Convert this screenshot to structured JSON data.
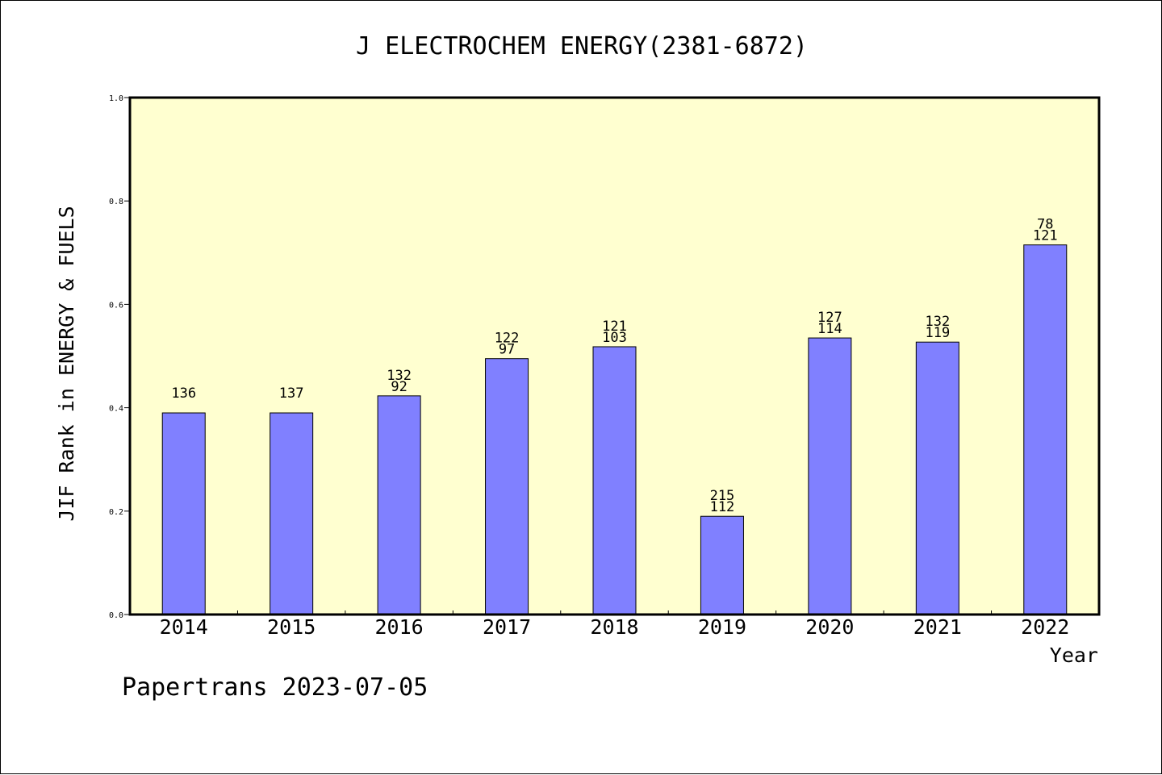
{
  "footer": "Papertrans 2023-07-05",
  "chart_data": {
    "type": "bar",
    "title": "J ELECTROCHEM ENERGY(2381-6872)",
    "xlabel": "Year",
    "ylabel": "JIF Rank in ENERGY & FUELS",
    "ylim": [
      0,
      1.0
    ],
    "yticks": [
      "0.0",
      "0.2",
      "0.4",
      "0.6",
      "0.8",
      "1.0"
    ],
    "categories": [
      "2014",
      "2015",
      "2016",
      "2017",
      "2018",
      "2019",
      "2020",
      "2021",
      "2022"
    ],
    "series": [
      {
        "values": [
          0.39,
          0.39,
          0.423,
          0.495,
          0.518,
          0.19,
          0.535,
          0.527,
          0.715
        ]
      }
    ],
    "bar_labels": [
      [
        "136"
      ],
      [
        "137"
      ],
      [
        "132",
        "92"
      ],
      [
        "122",
        "97"
      ],
      [
        "121",
        "103"
      ],
      [
        "215",
        "112"
      ],
      [
        "127",
        "114"
      ],
      [
        "132",
        "119"
      ],
      [
        "78",
        "121"
      ]
    ],
    "plot_background": "#ffffd0",
    "bar_color": "#8080ff",
    "grid": false
  }
}
